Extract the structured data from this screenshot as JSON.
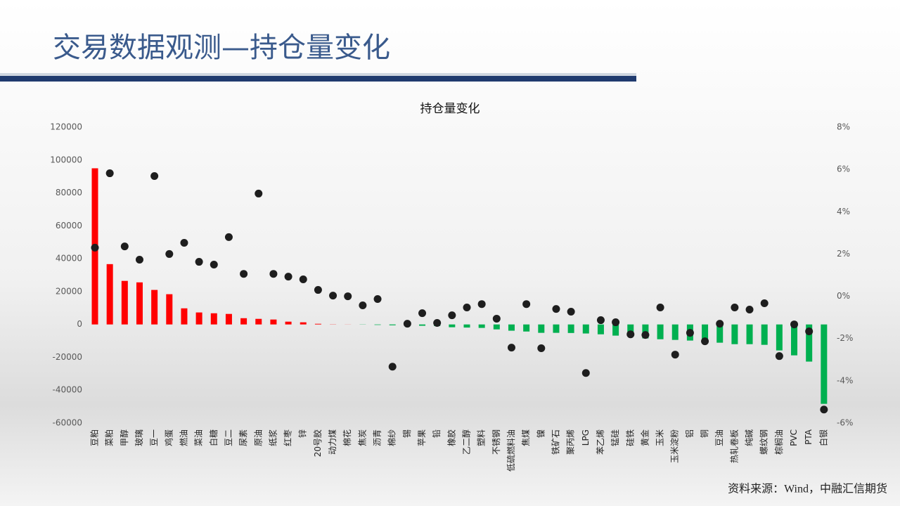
{
  "header": {
    "title": "交易数据观测—持仓量变化"
  },
  "chart_data": {
    "type": "bar",
    "title": "持仓量变化",
    "categories": [
      "豆粕",
      "菜粕",
      "甲醇",
      "玻璃",
      "豆一",
      "鸡蛋",
      "燃油",
      "菜油",
      "白糖",
      "豆二",
      "尿素",
      "原油",
      "纸浆",
      "红枣",
      "锌",
      "20号胶",
      "动力煤",
      "棉花",
      "焦炭",
      "沥青",
      "棉纱",
      "锡",
      "苹果",
      "铅",
      "橡胶",
      "乙二醇",
      "塑料",
      "不锈钢",
      "低硫燃料油",
      "焦煤",
      "镍",
      "铁矿石",
      "聚丙烯",
      "LPG",
      "苯乙烯",
      "锰硅",
      "硅铁",
      "黄金",
      "玉米",
      "玉米淀粉",
      "铝",
      "铜",
      "豆油",
      "热轧卷板",
      "纯碱",
      "螺纹钢",
      "棕榈油",
      "PVC",
      "PTA",
      "白银"
    ],
    "series": [
      {
        "type": "bar",
        "positive_color": "#ff0000",
        "negative_color": "#00b050",
        "values": [
          95000,
          36700,
          26500,
          25600,
          21000,
          18400,
          9800,
          7300,
          6800,
          6400,
          3800,
          3400,
          3000,
          1700,
          1300,
          400,
          100,
          50,
          -100,
          -300,
          -500,
          -700,
          -800,
          -1000,
          -1700,
          -1900,
          -2100,
          -3000,
          -3800,
          -4300,
          -5100,
          -5100,
          -5200,
          -5500,
          -6000,
          -6800,
          -7300,
          -8500,
          -9000,
          -9400,
          -9800,
          -10700,
          -11100,
          -12000,
          -12000,
          -12400,
          -15800,
          -18800,
          -22600,
          -48300
        ]
      },
      {
        "type": "scatter",
        "axis": "y2",
        "color": "#1e1e1e",
        "values": [
          2.3,
          5.82,
          2.36,
          1.73,
          5.69,
          2.0,
          2.53,
          1.63,
          1.5,
          2.8,
          1.06,
          4.86,
          1.06,
          0.93,
          0.8,
          0.3,
          0.03,
          0.0,
          -0.43,
          -0.13,
          -3.33,
          -1.3,
          -0.8,
          -1.26,
          -0.9,
          -0.53,
          -0.37,
          -1.06,
          -2.43,
          -0.37,
          -2.46,
          -0.6,
          -0.73,
          -3.63,
          -1.13,
          -1.23,
          -1.8,
          -1.83,
          -0.53,
          -2.76,
          -1.73,
          -2.13,
          -1.3,
          -0.53,
          -0.63,
          -0.33,
          -2.83,
          -1.33,
          -1.66,
          -5.36
        ]
      }
    ],
    "ylim": [
      -60000,
      120000
    ],
    "yticks": [
      -60000,
      -40000,
      -20000,
      0,
      20000,
      40000,
      60000,
      80000,
      100000,
      120000
    ],
    "y2lim": [
      -6,
      8
    ],
    "y2ticks": [
      {
        "value": -6,
        "label": "-6%"
      },
      {
        "value": -4,
        "label": "-4%"
      },
      {
        "value": -2,
        "label": "-2%"
      },
      {
        "value": 0,
        "label": "0%"
      },
      {
        "value": 2,
        "label": "2%"
      },
      {
        "value": 4,
        "label": "4%"
      },
      {
        "value": 6,
        "label": "6%"
      },
      {
        "value": 8,
        "label": "8%"
      }
    ],
    "grid": false
  },
  "footer": {
    "source": "资料来源：Wind，中融汇信期货"
  }
}
